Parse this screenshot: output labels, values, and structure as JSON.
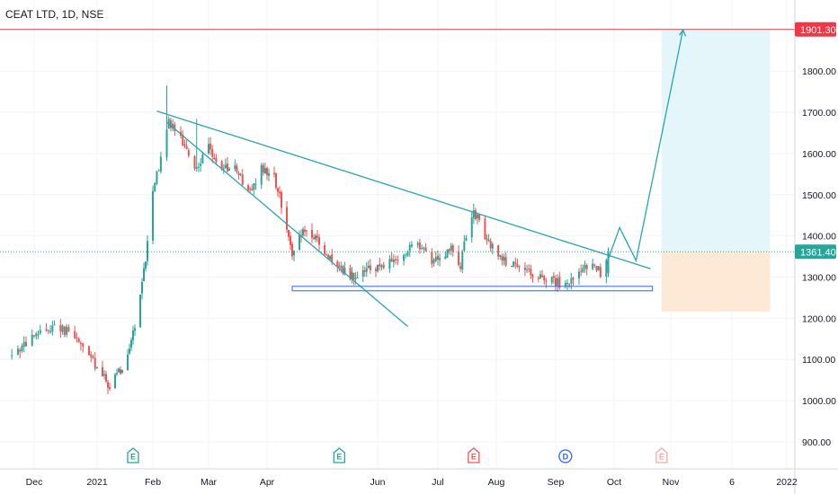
{
  "symbol_title": "CEAT LTD, 1D, NSE",
  "colors": {
    "up": "#26a69a",
    "down": "#ef5350",
    "trendline": "#26a5b5",
    "support": "#2962ff",
    "resistance": "#f23645",
    "target_zone": "#e5f6fb",
    "stop_zone": "#fde9d6",
    "grid": "#f0f3fa",
    "axis_text": "#131722",
    "current_price_tag": "#26a69a"
  },
  "chart_data": {
    "type": "candlestick",
    "title": "CEAT LTD, 1D, NSE",
    "xlabel": "",
    "ylabel": "",
    "ylim": [
      860,
      1960
    ],
    "x_ticks": [
      "Dec",
      "2021",
      "Feb",
      "Mar",
      "Apr",
      "Jun",
      "Jul",
      "Aug",
      "Sep",
      "Oct",
      "Nov",
      "6",
      "2022"
    ],
    "y_ticks": [
      "900.00",
      "1000.00",
      "1100.00",
      "1200.00",
      "1300.00",
      "1400.00",
      "1500.00",
      "1600.00",
      "1700.00",
      "1800.00"
    ],
    "price_labels": {
      "resistance": "1901.30",
      "current": "1361.40"
    },
    "resistance_level": 1901.3,
    "current_price": 1361.4,
    "support_level": 1272,
    "projection_path": [
      {
        "date": "2021-09-27",
        "price": 1330
      },
      {
        "date": "2021-10-04",
        "price": 1420
      },
      {
        "date": "2021-10-13",
        "price": 1340
      },
      {
        "date": "2021-11-02",
        "price": 1900
      }
    ],
    "target_zone": {
      "from_date": "2021-10-27",
      "to_date": "2021-12-15",
      "top": 1901.3,
      "bottom": 1361.4
    },
    "stop_zone": {
      "from_date": "2021-10-27",
      "to_date": "2021-12-15",
      "top": 1361.4,
      "bottom": 1216
    },
    "events": [
      {
        "date": "2021-01-21",
        "label": "E",
        "kind": "earnings-past"
      },
      {
        "date": "2021-05-11",
        "label": "E",
        "kind": "earnings-past"
      },
      {
        "date": "2021-07-20",
        "label": "E",
        "kind": "earnings-negative"
      },
      {
        "date": "2021-09-06",
        "label": "D",
        "kind": "dividend"
      },
      {
        "date": "2021-10-27",
        "label": "E",
        "kind": "earnings-upcoming"
      }
    ],
    "price_anchors": [
      [
        "2020-11-20",
        1110
      ],
      [
        "2020-12-03",
        1160
      ],
      [
        "2020-12-12",
        1185
      ],
      [
        "2020-12-22",
        1150
      ],
      [
        "2021-01-04",
        1060
      ],
      [
        "2021-01-08",
        1035
      ],
      [
        "2021-01-15",
        1080
      ],
      [
        "2021-01-22",
        1180
      ],
      [
        "2021-01-28",
        1340
      ],
      [
        "2021-02-01",
        1520
      ],
      [
        "2021-02-06",
        1600
      ],
      [
        "2021-02-09",
        1680
      ],
      [
        "2021-02-15",
        1640
      ],
      [
        "2021-02-22",
        1560
      ],
      [
        "2021-03-01",
        1620
      ],
      [
        "2021-03-08",
        1560
      ],
      [
        "2021-03-15",
        1570
      ],
      [
        "2021-03-22",
        1500
      ],
      [
        "2021-03-29",
        1560
      ],
      [
        "2021-04-05",
        1540
      ],
      [
        "2021-04-09",
        1480
      ],
      [
        "2021-04-15",
        1360
      ],
      [
        "2021-04-22",
        1420
      ],
      [
        "2021-04-30",
        1380
      ],
      [
        "2021-05-10",
        1320
      ],
      [
        "2021-05-20",
        1300
      ],
      [
        "2021-05-28",
        1320
      ],
      [
        "2021-06-10",
        1340
      ],
      [
        "2021-06-20",
        1380
      ],
      [
        "2021-06-28",
        1340
      ],
      [
        "2021-07-08",
        1370
      ],
      [
        "2021-07-13",
        1330
      ],
      [
        "2021-07-16",
        1400
      ],
      [
        "2021-07-20",
        1460
      ],
      [
        "2021-07-27",
        1390
      ],
      [
        "2021-08-05",
        1340
      ],
      [
        "2021-08-12",
        1320
      ],
      [
        "2021-08-20",
        1305
      ],
      [
        "2021-08-28",
        1300
      ],
      [
        "2021-09-06",
        1275
      ],
      [
        "2021-09-12",
        1300
      ],
      [
        "2021-09-20",
        1340
      ],
      [
        "2021-09-24",
        1310
      ],
      [
        "2021-09-28",
        1361.4
      ]
    ],
    "candles": []
  }
}
